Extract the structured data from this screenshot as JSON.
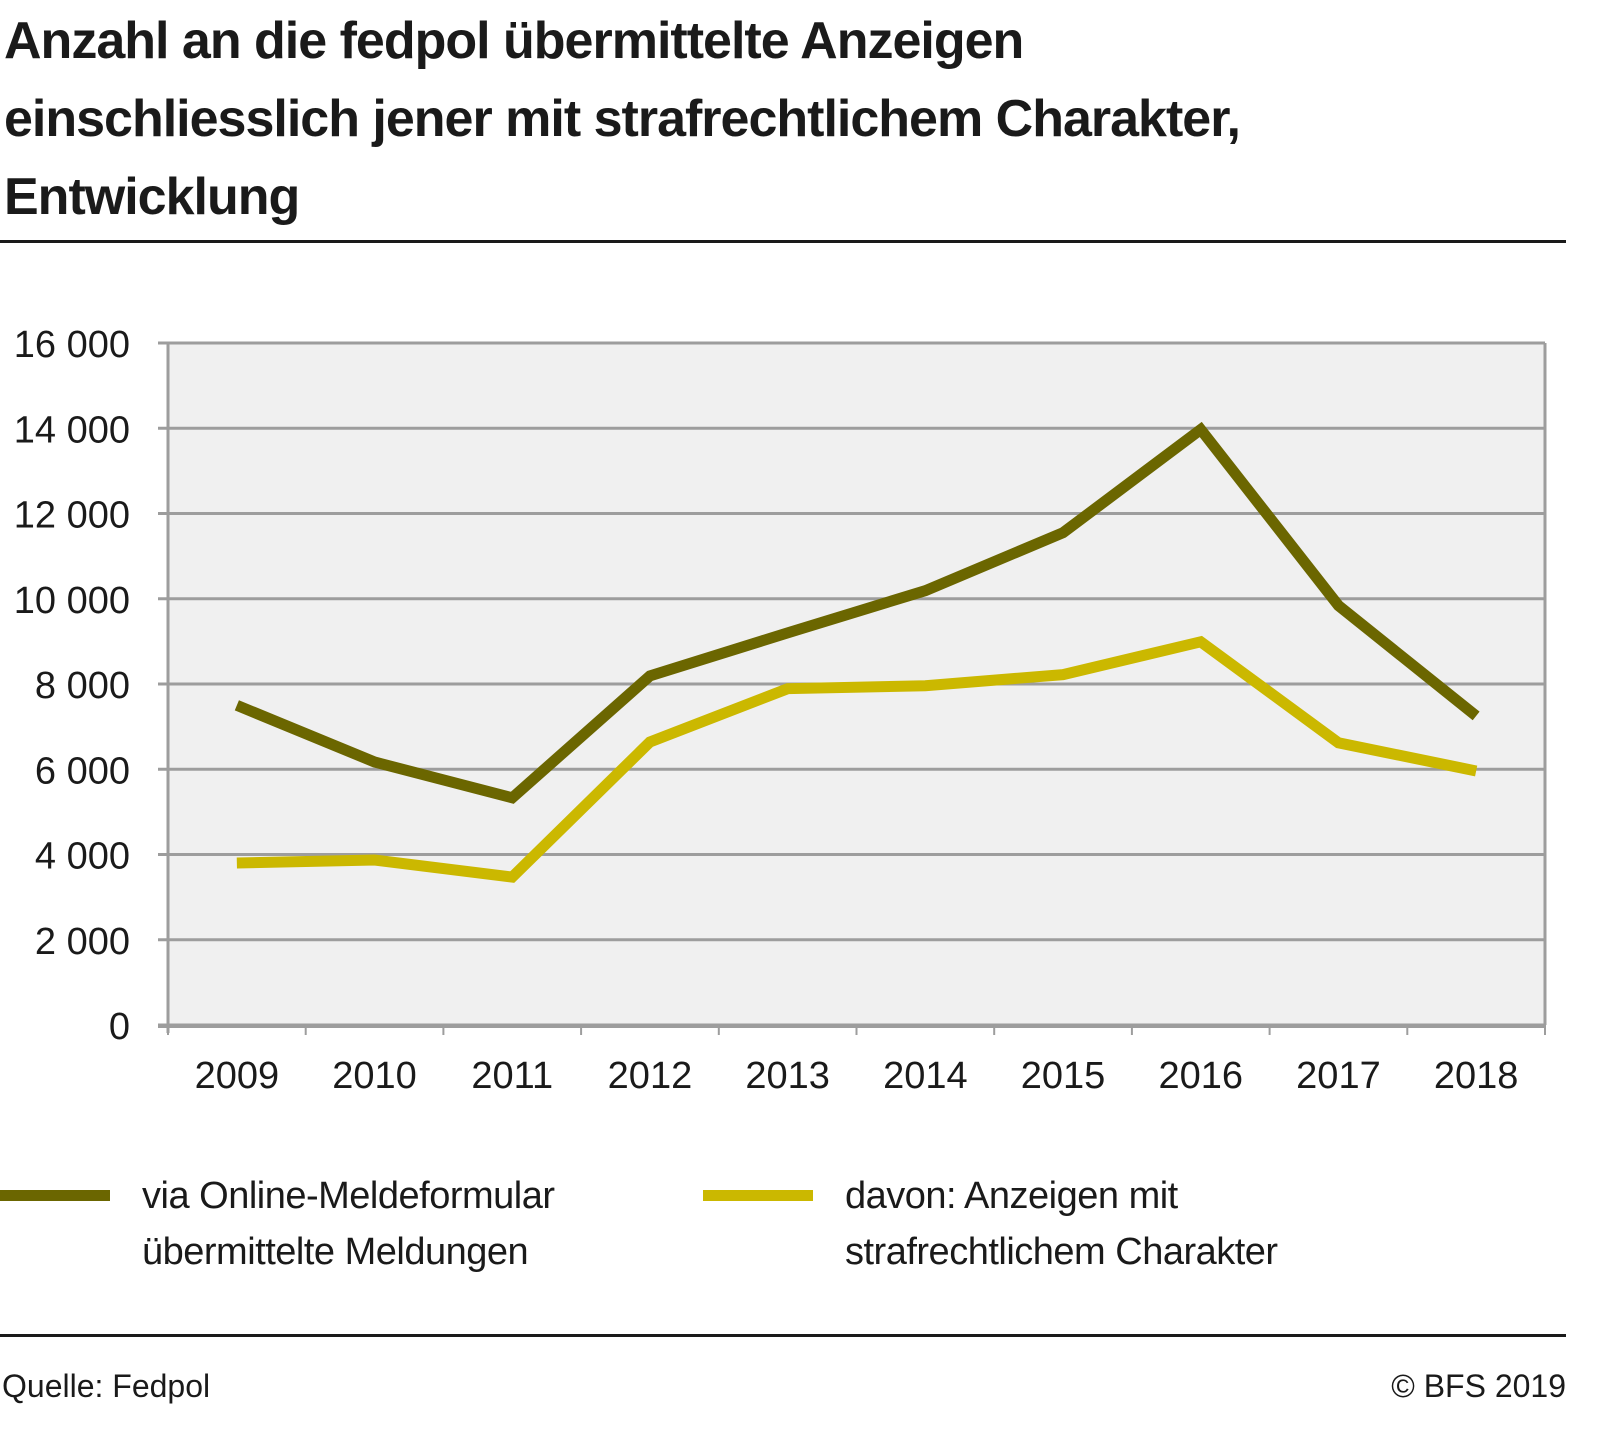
{
  "header": {
    "title_lines": [
      "Anzahl an die fedpol übermittelte Anzeigen",
      "einschliesslich jener mit strafrechtlichem Charakter,",
      "Entwicklung"
    ]
  },
  "footer": {
    "source": "Quelle: Fedpol",
    "copyright": "© BFS 2019"
  },
  "colors": {
    "series_dark": "#6b6600",
    "series_yellow": "#cbb800",
    "plot_background": "#f0f0f0",
    "grid": "#9d9d9d"
  },
  "chart_data": {
    "type": "line",
    "title": "Anzahl an die fedpol übermittelte Anzeigen einschliesslich jener mit strafrechtlichem Charakter, Entwicklung",
    "xlabel": "",
    "ylabel": "",
    "categories": [
      "2009",
      "2010",
      "2011",
      "2012",
      "2013",
      "2014",
      "2015",
      "2016",
      "2017",
      "2018"
    ],
    "ylim": [
      0,
      16000
    ],
    "yticks": [
      0,
      2000,
      4000,
      6000,
      8000,
      10000,
      12000,
      14000,
      16000
    ],
    "ytick_labels": [
      "0",
      "2 000",
      "4 000",
      "6 000",
      "8 000",
      "10 000",
      "12 000",
      "14 000",
      "16 000"
    ],
    "grid": true,
    "legend_position": "bottom",
    "series": [
      {
        "name": "via Online-Meldeformular übermittelte Meldungen",
        "legend_lines": [
          "via Online-Meldeformular",
          "übermittelte Meldungen"
        ],
        "color": "#6b6600",
        "values": [
          7500,
          6170,
          5330,
          8190,
          9200,
          10190,
          11550,
          13970,
          9840,
          7250
        ]
      },
      {
        "name": "davon: Anzeigen mit strafrechtlichem Charakter",
        "legend_lines": [
          "davon: Anzeigen mit",
          "strafrechtlichem Charakter"
        ],
        "color": "#cbb800",
        "values": [
          3800,
          3870,
          3470,
          6640,
          7890,
          7960,
          8220,
          8990,
          6620,
          5960
        ]
      }
    ]
  }
}
